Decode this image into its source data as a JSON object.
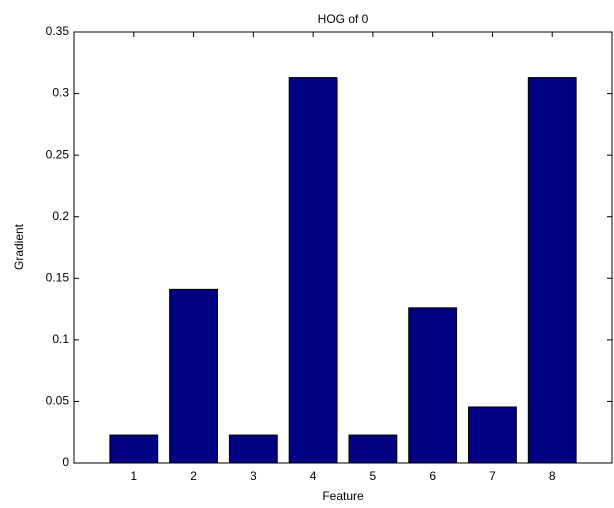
{
  "chart_data": {
    "type": "bar",
    "title": "HOG of 0",
    "x_label": "Feature",
    "y_label": "Gradient",
    "x": [
      1,
      2,
      3,
      4,
      5,
      6,
      7,
      8
    ],
    "values": [
      0.0227,
      0.141,
      0.0227,
      0.313,
      0.0227,
      0.126,
      0.0455,
      0.313
    ],
    "color": "#000080",
    "xlim": [
      0,
      9
    ],
    "xticks": [
      1,
      2,
      3,
      4,
      5,
      6,
      7,
      8
    ],
    "ylim": [
      0,
      0.35
    ],
    "yticks": [
      0,
      0.05,
      0.1,
      0.15,
      0.2,
      0.25,
      0.3,
      0.35
    ]
  }
}
